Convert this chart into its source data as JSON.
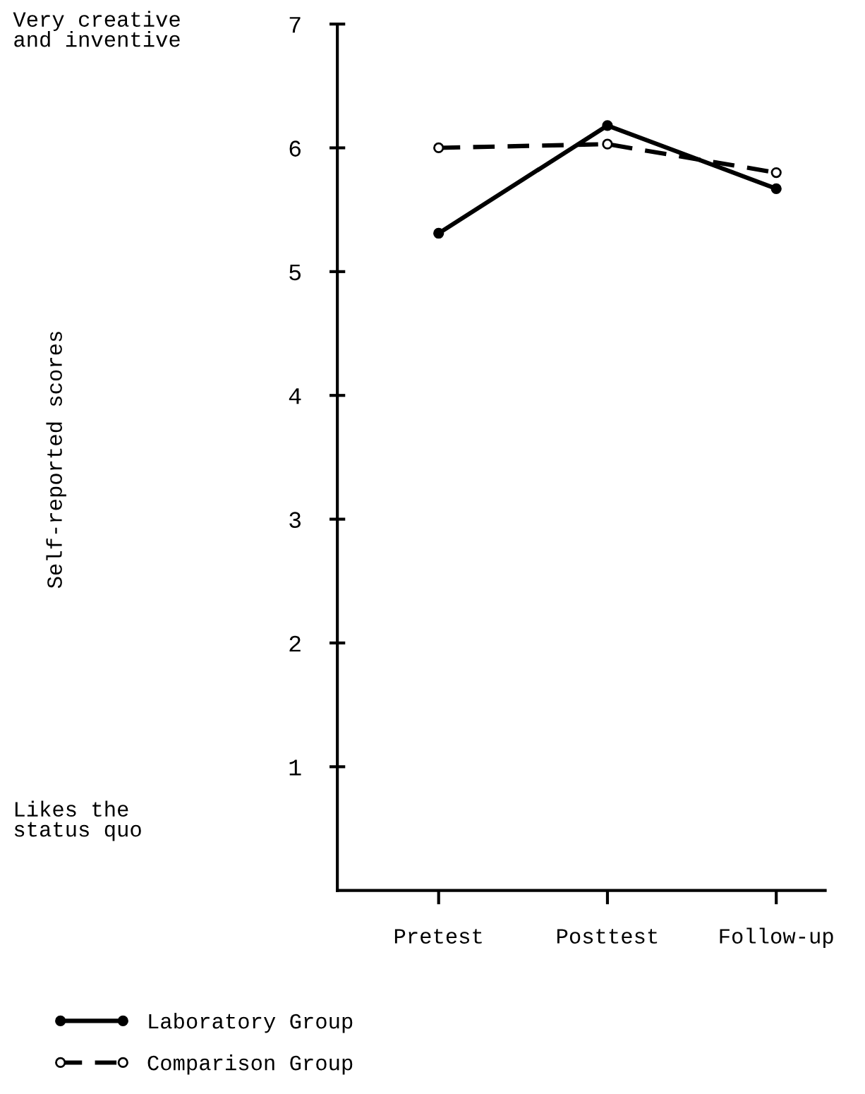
{
  "chart_data": {
    "type": "line",
    "categories": [
      "Pretest",
      "Posttest",
      "Follow-up"
    ],
    "series": [
      {
        "name": "Laboratory Group",
        "color": "#000000",
        "values": [
          5.31,
          6.18,
          5.67
        ],
        "line_style": "solid"
      },
      {
        "name": "Comparison Group",
        "color": "#000000",
        "values": [
          6.0,
          6.03,
          5.8
        ],
        "line_style": "dashed"
      }
    ],
    "ylim": [
      0,
      7
    ],
    "yticks": [
      1,
      2,
      3,
      4,
      5,
      6,
      7
    ],
    "annotations": [
      "Very creative\nand inventive",
      "Likes the\nstatus quo",
      "Self-reported scores"
    ],
    "marker": "circle",
    "grid": false,
    "legend": "bottom left"
  }
}
